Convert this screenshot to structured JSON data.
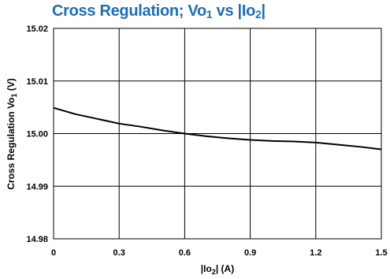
{
  "chart_data": {
    "type": "line",
    "title": {
      "prefix": "Cross Regulation; Vo",
      "sub1": "1",
      "mid": " vs |Io",
      "sub2": "2",
      "suffix": "|"
    },
    "xlabel": {
      "prefix": "|Io",
      "sub": "2",
      "suffix": "| (A)"
    },
    "ylabel": {
      "prefix": "Cross Regulation Vo",
      "sub": "1",
      "suffix": " (V)"
    },
    "xlim": [
      0,
      1.5
    ],
    "ylim": [
      14.98,
      15.02
    ],
    "x_ticks": [
      "0",
      "0.3",
      "0.6",
      "0.9",
      "1.2",
      "1.5"
    ],
    "y_ticks": [
      "15.02",
      "15.01",
      "15.00",
      "14.99",
      "14.98"
    ],
    "grid": true,
    "series": [
      {
        "color": "#000000",
        "x": [
          0,
          0.1,
          0.2,
          0.3,
          0.4,
          0.5,
          0.6,
          0.7,
          0.8,
          0.9,
          1.0,
          1.1,
          1.2,
          1.3,
          1.4,
          1.5
        ],
        "y": [
          15.0049,
          15.0037,
          15.0028,
          15.0019,
          15.0013,
          15.0006,
          15.0,
          14.9995,
          14.9991,
          14.9988,
          14.9986,
          14.9985,
          14.9983,
          14.9979,
          14.9975,
          14.997
        ]
      }
    ]
  }
}
